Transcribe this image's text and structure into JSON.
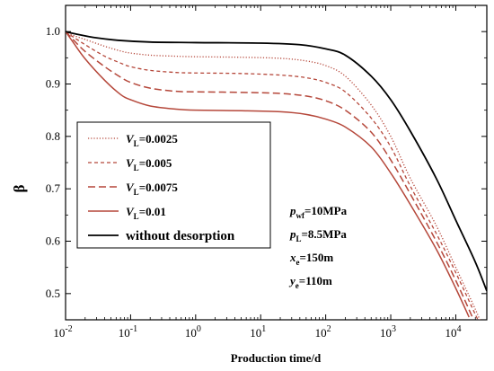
{
  "chart_data": {
    "type": "line",
    "xlabel": "Production time/d",
    "ylabel": "β",
    "x_scale": "log",
    "xlim": [
      0.01,
      30000
    ],
    "ylim": [
      0.45,
      1.05
    ],
    "x_ticks": [
      {
        "value": 0.01,
        "base": "10",
        "exp": "-2"
      },
      {
        "value": 0.1,
        "base": "10",
        "exp": "-1"
      },
      {
        "value": 1,
        "base": "10",
        "exp": "0"
      },
      {
        "value": 10,
        "base": "10",
        "exp": "1"
      },
      {
        "value": 100,
        "base": "10",
        "exp": "2"
      },
      {
        "value": 1000,
        "base": "10",
        "exp": "3"
      },
      {
        "value": 10000,
        "base": "10",
        "exp": "4"
      }
    ],
    "y_ticks": [
      {
        "value": 0.5,
        "label": "0.5"
      },
      {
        "value": 0.6,
        "label": "0.6"
      },
      {
        "value": 0.7,
        "label": "0.7"
      },
      {
        "value": 0.8,
        "label": "0.8"
      },
      {
        "value": 0.9,
        "label": "0.9"
      },
      {
        "value": 1.0,
        "label": "1.0"
      }
    ],
    "legend": {
      "position": "center-left",
      "entries": [
        {
          "prefix": "V",
          "sub": "L",
          "suffix": "=0.0025"
        },
        {
          "prefix": "V",
          "sub": "L",
          "suffix": "=0.005"
        },
        {
          "prefix": "V",
          "sub": "L",
          "suffix": "=0.0075"
        },
        {
          "prefix": "V",
          "sub": "L",
          "suffix": "=0.01"
        },
        {
          "prefix": "",
          "sub": "",
          "suffix": "without desorption"
        }
      ]
    },
    "series": [
      {
        "name": "VL=0.0025",
        "color": "#b5473a",
        "style": "dotted",
        "points": [
          [
            0.01,
            1.0
          ],
          [
            0.013,
            0.993
          ],
          [
            0.02,
            0.985
          ],
          [
            0.04,
            0.972
          ],
          [
            0.07,
            0.963
          ],
          [
            0.1,
            0.959
          ],
          [
            0.2,
            0.955
          ],
          [
            0.5,
            0.953
          ],
          [
            1,
            0.952
          ],
          [
            5,
            0.951
          ],
          [
            20,
            0.949
          ],
          [
            50,
            0.944
          ],
          [
            100,
            0.935
          ],
          [
            200,
            0.915
          ],
          [
            500,
            0.86
          ],
          [
            1000,
            0.8
          ],
          [
            2000,
            0.72
          ],
          [
            5000,
            0.63
          ],
          [
            10000,
            0.55
          ],
          [
            20000,
            0.47
          ],
          [
            25000,
            0.44
          ]
        ]
      },
      {
        "name": "VL=0.005",
        "color": "#b5473a",
        "style": "short-dash",
        "points": [
          [
            0.01,
            1.0
          ],
          [
            0.013,
            0.99
          ],
          [
            0.02,
            0.975
          ],
          [
            0.04,
            0.953
          ],
          [
            0.07,
            0.94
          ],
          [
            0.1,
            0.933
          ],
          [
            0.2,
            0.926
          ],
          [
            0.5,
            0.922
          ],
          [
            1,
            0.921
          ],
          [
            5,
            0.92
          ],
          [
            20,
            0.917
          ],
          [
            50,
            0.912
          ],
          [
            100,
            0.903
          ],
          [
            200,
            0.885
          ],
          [
            500,
            0.835
          ],
          [
            1000,
            0.78
          ],
          [
            2000,
            0.705
          ],
          [
            5000,
            0.615
          ],
          [
            10000,
            0.54
          ],
          [
            20000,
            0.46
          ],
          [
            22000,
            0.45
          ]
        ]
      },
      {
        "name": "VL=0.0075",
        "color": "#b5473a",
        "style": "long-dash",
        "points": [
          [
            0.01,
            1.0
          ],
          [
            0.013,
            0.985
          ],
          [
            0.02,
            0.962
          ],
          [
            0.04,
            0.933
          ],
          [
            0.07,
            0.913
          ],
          [
            0.1,
            0.903
          ],
          [
            0.2,
            0.892
          ],
          [
            0.5,
            0.886
          ],
          [
            1,
            0.885
          ],
          [
            5,
            0.884
          ],
          [
            20,
            0.882
          ],
          [
            50,
            0.877
          ],
          [
            100,
            0.868
          ],
          [
            200,
            0.85
          ],
          [
            500,
            0.808
          ],
          [
            1000,
            0.755
          ],
          [
            2000,
            0.69
          ],
          [
            5000,
            0.6
          ],
          [
            10000,
            0.525
          ],
          [
            18000,
            0.455
          ]
        ]
      },
      {
        "name": "VL=0.01",
        "color": "#b5473a",
        "style": "solid",
        "points": [
          [
            0.01,
            1.0
          ],
          [
            0.013,
            0.98
          ],
          [
            0.02,
            0.948
          ],
          [
            0.04,
            0.907
          ],
          [
            0.07,
            0.88
          ],
          [
            0.1,
            0.87
          ],
          [
            0.2,
            0.858
          ],
          [
            0.5,
            0.852
          ],
          [
            1,
            0.85
          ],
          [
            5,
            0.849
          ],
          [
            20,
            0.847
          ],
          [
            50,
            0.842
          ],
          [
            100,
            0.833
          ],
          [
            200,
            0.818
          ],
          [
            500,
            0.78
          ],
          [
            1000,
            0.73
          ],
          [
            2000,
            0.67
          ],
          [
            5000,
            0.585
          ],
          [
            10000,
            0.51
          ],
          [
            16000,
            0.455
          ]
        ]
      },
      {
        "name": "without desorption",
        "color": "#000000",
        "style": "solid-thick",
        "points": [
          [
            0.01,
            1.0
          ],
          [
            0.015,
            0.995
          ],
          [
            0.03,
            0.988
          ],
          [
            0.07,
            0.983
          ],
          [
            0.2,
            0.98
          ],
          [
            1,
            0.979
          ],
          [
            10,
            0.978
          ],
          [
            40,
            0.975
          ],
          [
            100,
            0.967
          ],
          [
            200,
            0.955
          ],
          [
            500,
            0.915
          ],
          [
            1000,
            0.87
          ],
          [
            2000,
            0.81
          ],
          [
            5000,
            0.72
          ],
          [
            10000,
            0.64
          ],
          [
            20000,
            0.56
          ],
          [
            30000,
            0.505
          ]
        ]
      }
    ],
    "annotations": [
      {
        "main": "p",
        "sub": "wf",
        "rest": "=10MPa"
      },
      {
        "main": "p",
        "sub": "L",
        "rest": "=8.5MPa"
      },
      {
        "main": "x",
        "sub": "e",
        "rest": "=150m"
      },
      {
        "main": "y",
        "sub": "e",
        "rest": "=110m"
      }
    ]
  }
}
